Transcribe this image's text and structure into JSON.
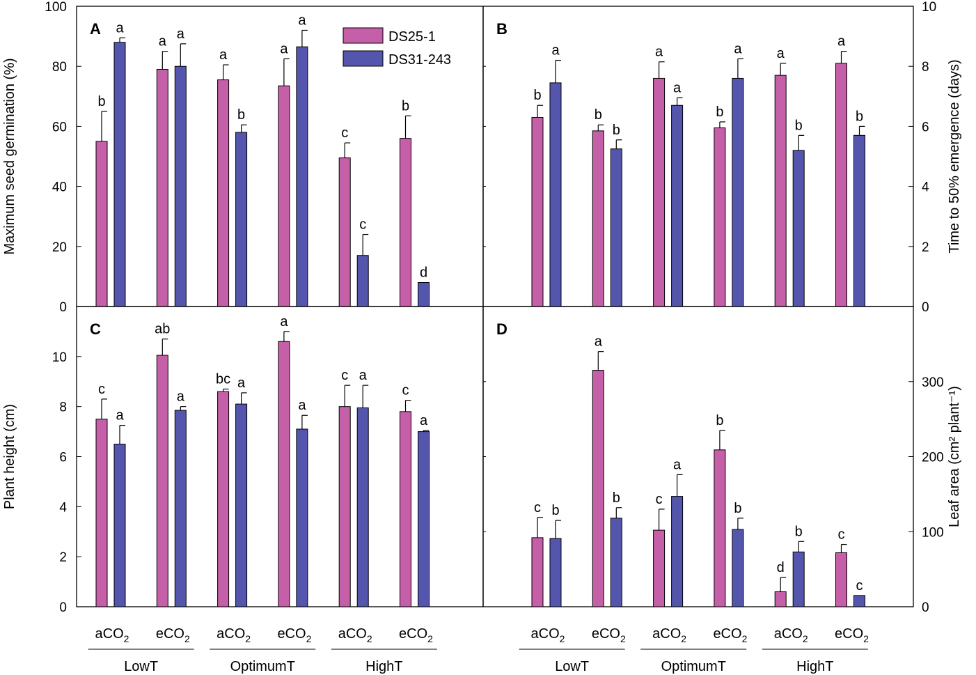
{
  "figure": {
    "legend": {
      "series": [
        "DS25-1",
        "DS31-243"
      ],
      "position": "top-right of panel A"
    },
    "colors": {
      "DS25-1": "#c45fa8",
      "DS31-243": "#5456ad",
      "axis": "#000000"
    },
    "x_axis": {
      "tick_base": [
        "aCO",
        "eCO",
        "aCO",
        "eCO",
        "aCO",
        "eCO"
      ],
      "tick_sub": "2",
      "groups": [
        "LowT",
        "OptimumT",
        "HighT"
      ]
    }
  },
  "chart_data": [
    {
      "panel": "A",
      "type": "bar",
      "ylabel": "Maximum seed germination (%)",
      "y_axis_side": "left",
      "ylim": [
        0,
        100
      ],
      "yticks": [
        "0",
        "20",
        "40",
        "60",
        "80",
        "100"
      ],
      "categories": [
        "LowT aCO2",
        "LowT eCO2",
        "OptimumT aCO2",
        "OptimumT eCO2",
        "HighT aCO2",
        "HighT eCO2"
      ],
      "series": [
        {
          "name": "DS25-1",
          "values": [
            55,
            79,
            75.5,
            73.5,
            49.5,
            56
          ],
          "errors": [
            10,
            6,
            5,
            9,
            5,
            7.5
          ],
          "letters": [
            "b",
            "a",
            "a",
            "a",
            "c",
            "b"
          ]
        },
        {
          "name": "DS31-243",
          "values": [
            88,
            80,
            58,
            86.5,
            17,
            8
          ],
          "errors": [
            1.5,
            7.5,
            2.5,
            5.5,
            7,
            0
          ],
          "letters": [
            "a",
            "a",
            "b",
            "a",
            "c",
            "d"
          ]
        }
      ]
    },
    {
      "panel": "B",
      "type": "bar",
      "ylabel": "Time to 50% emergence (days)",
      "y_axis_side": "right",
      "ylim": [
        0,
        10
      ],
      "yticks": [
        "0",
        "2",
        "4",
        "6",
        "8",
        "10"
      ],
      "categories": [
        "LowT aCO2",
        "LowT eCO2",
        "OptimumT aCO2",
        "OptimumT eCO2",
        "HighT aCO2",
        "HighT eCO2"
      ],
      "series": [
        {
          "name": "DS25-1",
          "values": [
            6.3,
            5.85,
            7.6,
            5.95,
            7.7,
            8.1
          ],
          "errors": [
            0.4,
            0.2,
            0.55,
            0.2,
            0.4,
            0.4
          ],
          "letters": [
            "b",
            "b",
            "a",
            "b",
            "a",
            "a"
          ]
        },
        {
          "name": "DS31-243",
          "values": [
            7.45,
            5.25,
            6.7,
            7.6,
            5.2,
            5.7
          ],
          "errors": [
            0.75,
            0.3,
            0.25,
            0.65,
            0.5,
            0.3
          ],
          "letters": [
            "a",
            "b",
            "a",
            "a",
            "b",
            "b"
          ]
        }
      ]
    },
    {
      "panel": "C",
      "type": "bar",
      "ylabel": "Plant height (cm)",
      "y_axis_side": "left",
      "ylim": [
        0,
        12
      ],
      "yticks": [
        "0",
        "2",
        "4",
        "6",
        "8",
        "10"
      ],
      "categories": [
        "LowT aCO2",
        "LowT eCO2",
        "OptimumT aCO2",
        "OptimumT eCO2",
        "HighT aCO2",
        "HighT eCO2"
      ],
      "series": [
        {
          "name": "DS25-1",
          "values": [
            7.5,
            10.05,
            8.6,
            10.6,
            8.0,
            7.8
          ],
          "errors": [
            0.8,
            0.65,
            0.1,
            0.4,
            0.85,
            0.45
          ],
          "letters": [
            "c",
            "ab",
            "bc",
            "a",
            "c",
            "c"
          ]
        },
        {
          "name": "DS31-243",
          "values": [
            6.5,
            7.85,
            8.1,
            7.1,
            7.95,
            7.0
          ],
          "errors": [
            0.75,
            0.15,
            0.45,
            0.55,
            0.9,
            0.05
          ],
          "letters": [
            "a",
            "a",
            "a",
            "a",
            "a",
            "a"
          ]
        }
      ]
    },
    {
      "panel": "D",
      "type": "bar",
      "ylabel": "Leaf area (cm² plant⁻¹)",
      "y_axis_side": "right",
      "ylim": [
        0,
        400
      ],
      "yticks": [
        "0",
        "100",
        "200",
        "300"
      ],
      "categories": [
        "LowT aCO2",
        "LowT eCO2",
        "OptimumT aCO2",
        "OptimumT eCO2",
        "HighT aCO2",
        "HighT eCO2"
      ],
      "series": [
        {
          "name": "DS25-1",
          "values": [
            92,
            315,
            102,
            209,
            20,
            72
          ],
          "errors": [
            27,
            25,
            28,
            26,
            19,
            11
          ],
          "letters": [
            "c",
            "a",
            "c",
            "b",
            "d",
            "c"
          ]
        },
        {
          "name": "DS31-243",
          "values": [
            91,
            118,
            147,
            103,
            73,
            15
          ],
          "errors": [
            24,
            14,
            29,
            15,
            14,
            0
          ],
          "letters": [
            "b",
            "b",
            "a",
            "b",
            "b",
            "c"
          ]
        }
      ]
    }
  ]
}
